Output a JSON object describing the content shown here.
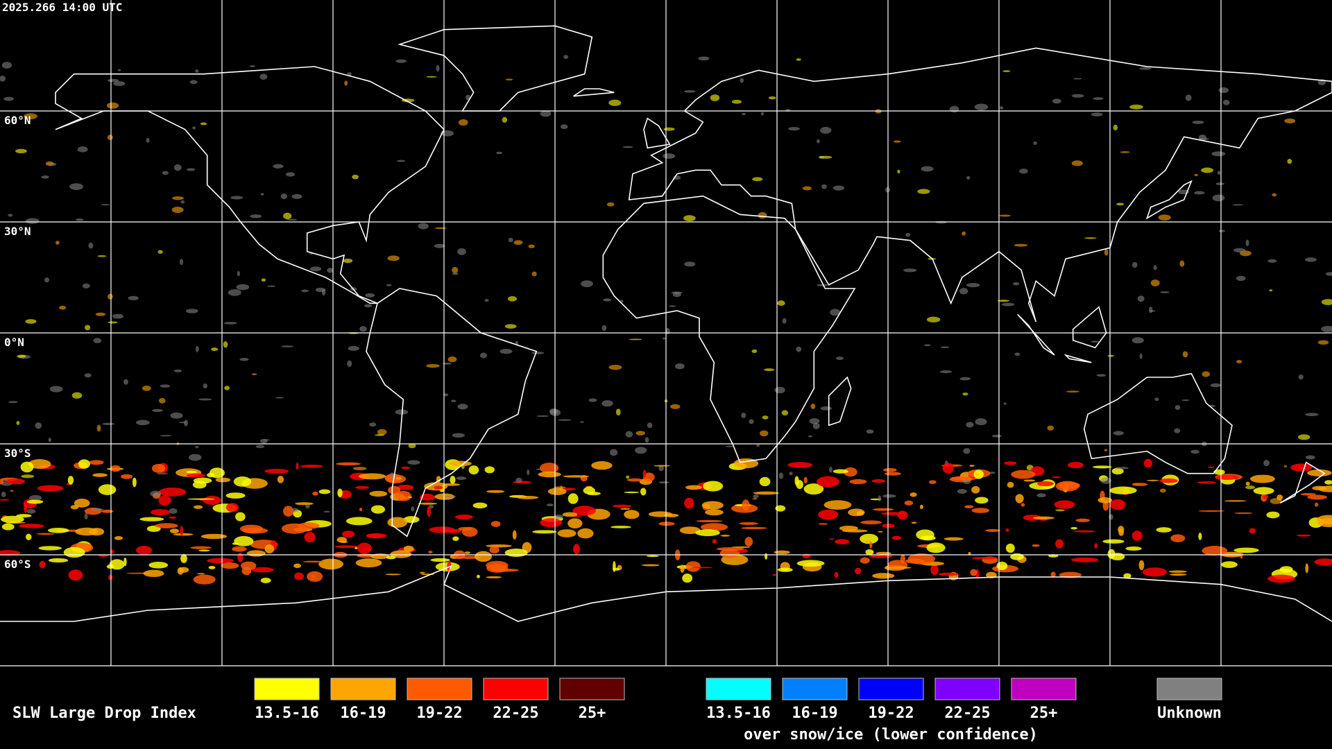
{
  "timestamp": "2025.266 14:00 UTC",
  "latitude_labels": [
    "60°N",
    "30°N",
    "0°N",
    "30°S",
    "60°S"
  ],
  "legend": {
    "title": "SLW Large Drop Index",
    "groups": [
      {
        "items": [
          {
            "label": "13.5-16",
            "color": "#ffff00"
          },
          {
            "label": "16-19",
            "color": "#ffa500"
          },
          {
            "label": "19-22",
            "color": "#ff5a00"
          },
          {
            "label": "22-25",
            "color": "#ff0000"
          },
          {
            "label": "25+",
            "color": "#600000"
          }
        ]
      },
      {
        "items": [
          {
            "label": "13.5-16",
            "color": "#00ffff"
          },
          {
            "label": "16-19",
            "color": "#0080ff"
          },
          {
            "label": "19-22",
            "color": "#0000ff"
          },
          {
            "label": "22-25",
            "color": "#8000ff"
          },
          {
            "label": "25+",
            "color": "#c000c0"
          }
        ],
        "caption": "over snow/ice (lower confidence)"
      }
    ],
    "unknown": {
      "label": "Unknown",
      "color": "#808080"
    }
  }
}
